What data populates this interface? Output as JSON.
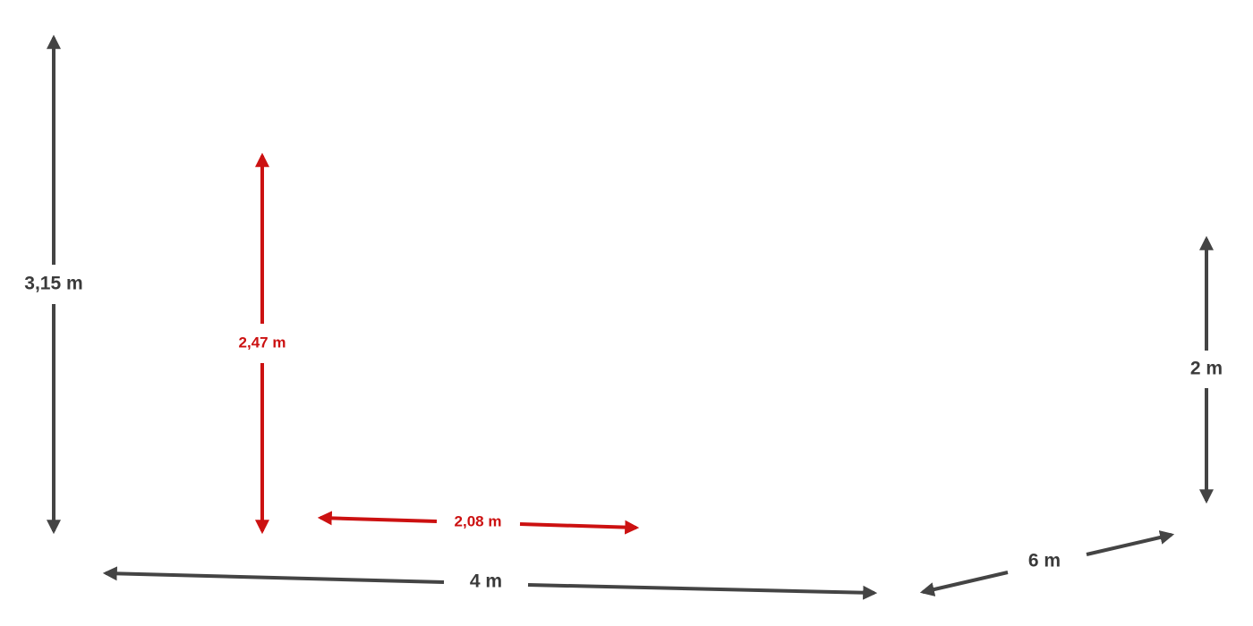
{
  "dimensions": [
    {
      "label": "3,15 m"
    },
    {
      "label": "2,47 m"
    },
    {
      "label": "2,08 m"
    },
    {
      "label": "4 m"
    },
    {
      "label": "6 m"
    },
    {
      "label": "2 m"
    }
  ]
}
